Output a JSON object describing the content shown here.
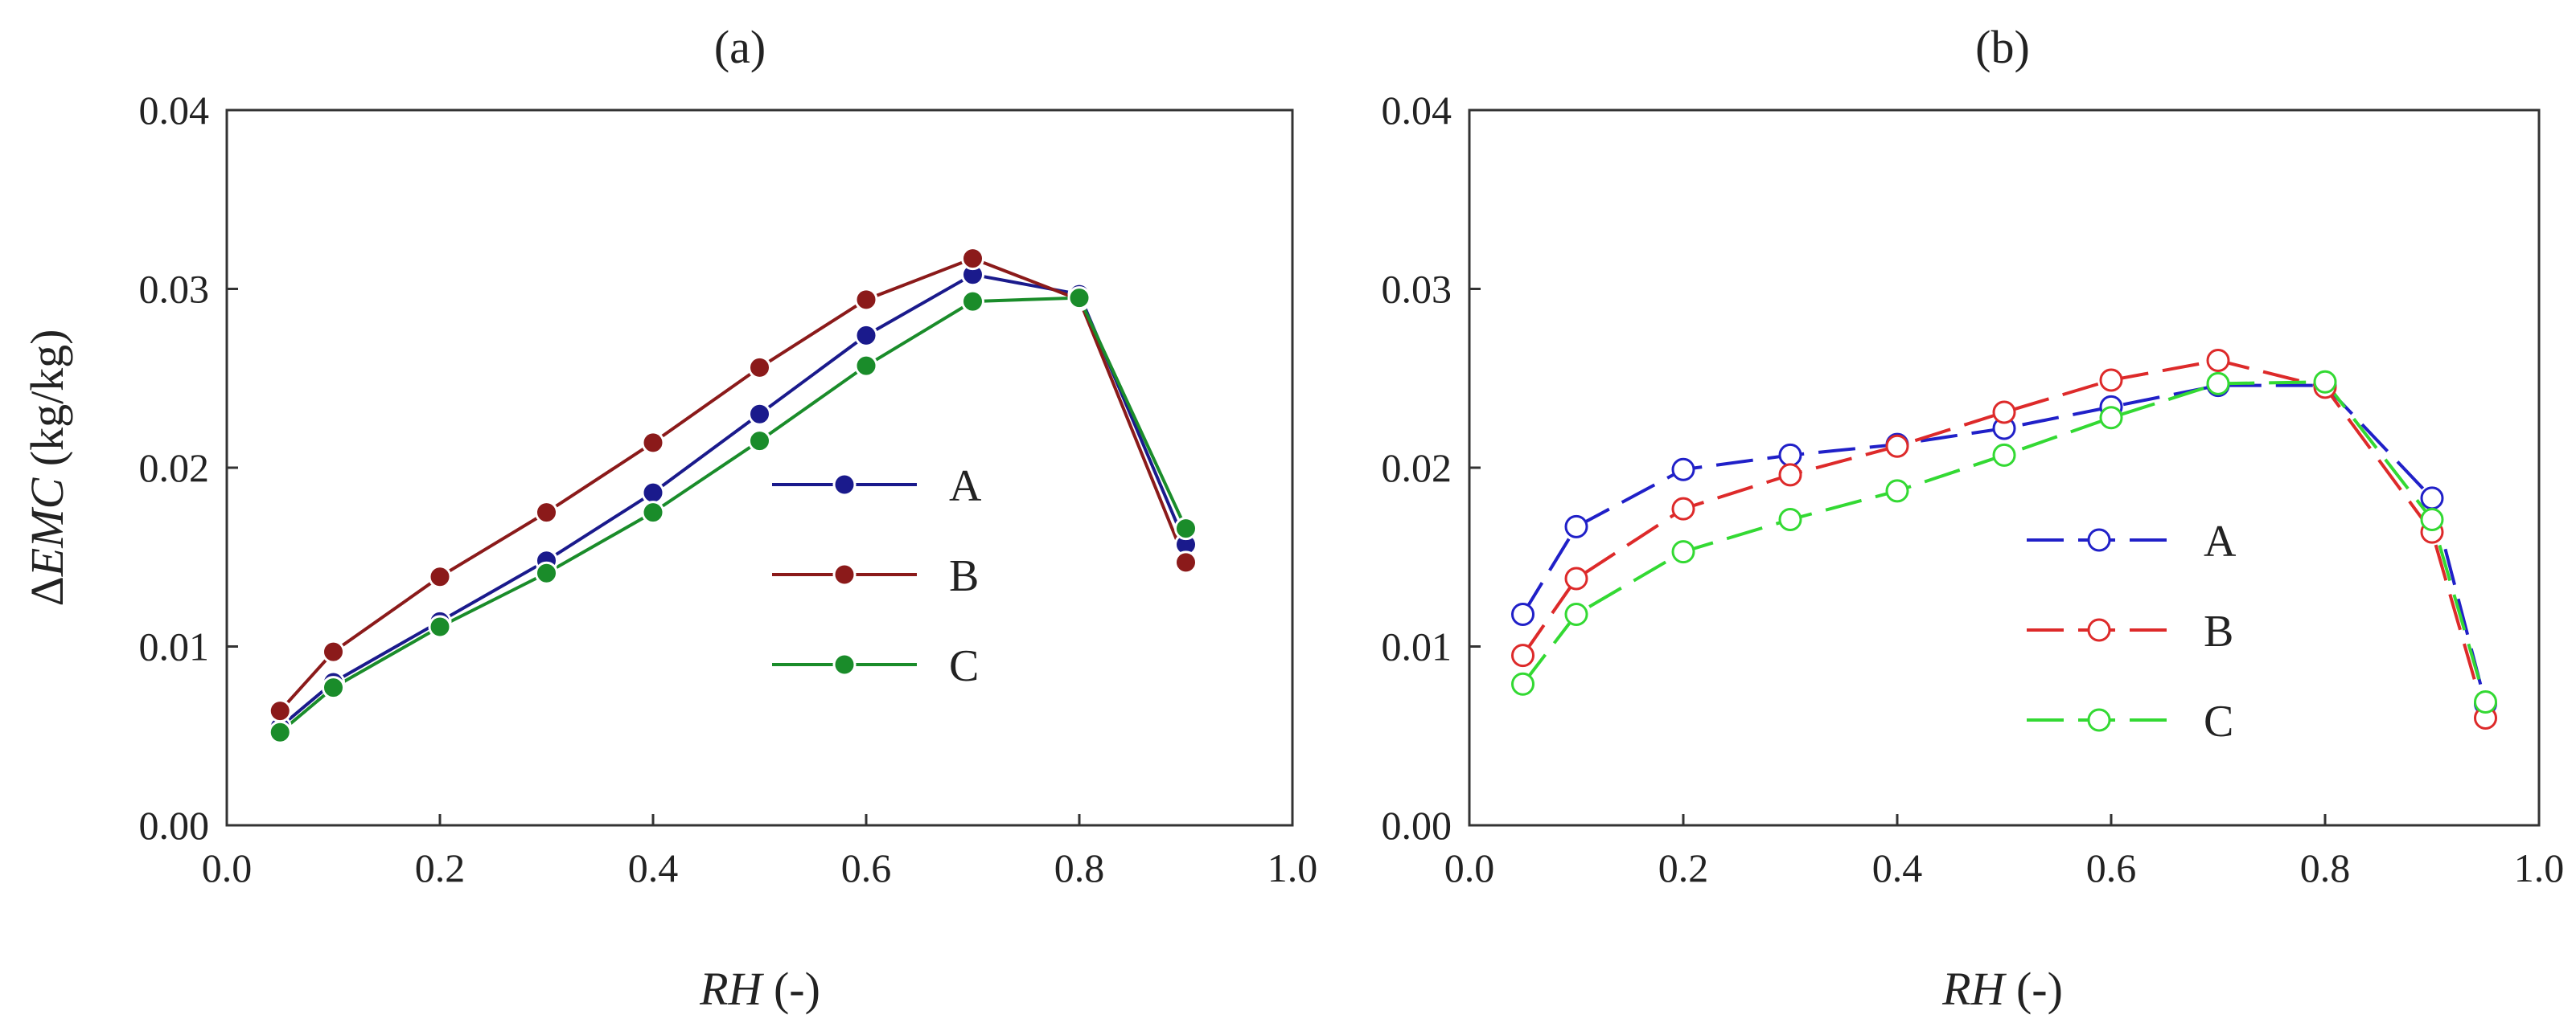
{
  "chart_data": [
    {
      "type": "line",
      "title": "(a)",
      "xlabel_var": "RH",
      "xlabel_unit": " (-)",
      "ylabel_prefix": "Δ",
      "ylabel_var": "EMC",
      "ylabel_unit": " (kg/kg)",
      "xlim": [
        0.0,
        1.0
      ],
      "ylim": [
        0.0,
        0.04
      ],
      "xticks": [
        "0.0",
        "0.2",
        "0.4",
        "0.6",
        "0.8",
        "1.0"
      ],
      "yticks": [
        "0.00",
        "0.01",
        "0.02",
        "0.03",
        "0.04"
      ],
      "x": [
        0.05,
        0.1,
        0.2,
        0.3,
        0.4,
        0.5,
        0.6,
        0.7,
        0.8,
        0.9
      ],
      "marker": "filled",
      "line_style": "solid",
      "legend_position": "center-right",
      "series": [
        {
          "name": "A",
          "color": "#1a1a8c",
          "values": [
            0.0055,
            0.008,
            0.0114,
            0.0148,
            0.0186,
            0.023,
            0.0274,
            0.0308,
            0.0297,
            0.0157
          ]
        },
        {
          "name": "B",
          "color": "#8b1a1a",
          "values": [
            0.0064,
            0.0097,
            0.0139,
            0.0175,
            0.0214,
            0.0256,
            0.0294,
            0.0317,
            0.0294,
            0.0147
          ]
        },
        {
          "name": "C",
          "color": "#1a8c2a",
          "values": [
            0.0052,
            0.0077,
            0.0111,
            0.0141,
            0.0175,
            0.0215,
            0.0257,
            0.0293,
            0.0295,
            0.0166
          ]
        }
      ]
    },
    {
      "type": "line",
      "title": "(b)",
      "xlabel_var": "RH",
      "xlabel_unit": " (-)",
      "xlim": [
        0.0,
        1.0
      ],
      "ylim": [
        0.0,
        0.04
      ],
      "xticks": [
        "0.0",
        "0.2",
        "0.4",
        "0.6",
        "0.8",
        "1.0"
      ],
      "yticks": [
        "0.00",
        "0.01",
        "0.02",
        "0.03",
        "0.04"
      ],
      "x": [
        0.05,
        0.1,
        0.2,
        0.3,
        0.4,
        0.5,
        0.6,
        0.7,
        0.8,
        0.9,
        0.95
      ],
      "marker": "open",
      "line_style": "dashed",
      "legend_position": "center-right",
      "series": [
        {
          "name": "A",
          "color": "#2020c8",
          "values": [
            0.0118,
            0.0167,
            0.0199,
            0.0207,
            0.0213,
            0.0222,
            0.0234,
            0.0246,
            0.0246,
            0.0183,
            0.0068
          ]
        },
        {
          "name": "B",
          "color": "#dd2a2a",
          "values": [
            0.0095,
            0.0138,
            0.0177,
            0.0196,
            0.0212,
            0.0231,
            0.0249,
            0.026,
            0.0245,
            0.0164,
            0.006
          ]
        },
        {
          "name": "C",
          "color": "#33d933",
          "values": [
            0.0079,
            0.0118,
            0.0153,
            0.0171,
            0.0187,
            0.0207,
            0.0228,
            0.0247,
            0.0248,
            0.0171,
            0.0069
          ]
        }
      ]
    }
  ]
}
